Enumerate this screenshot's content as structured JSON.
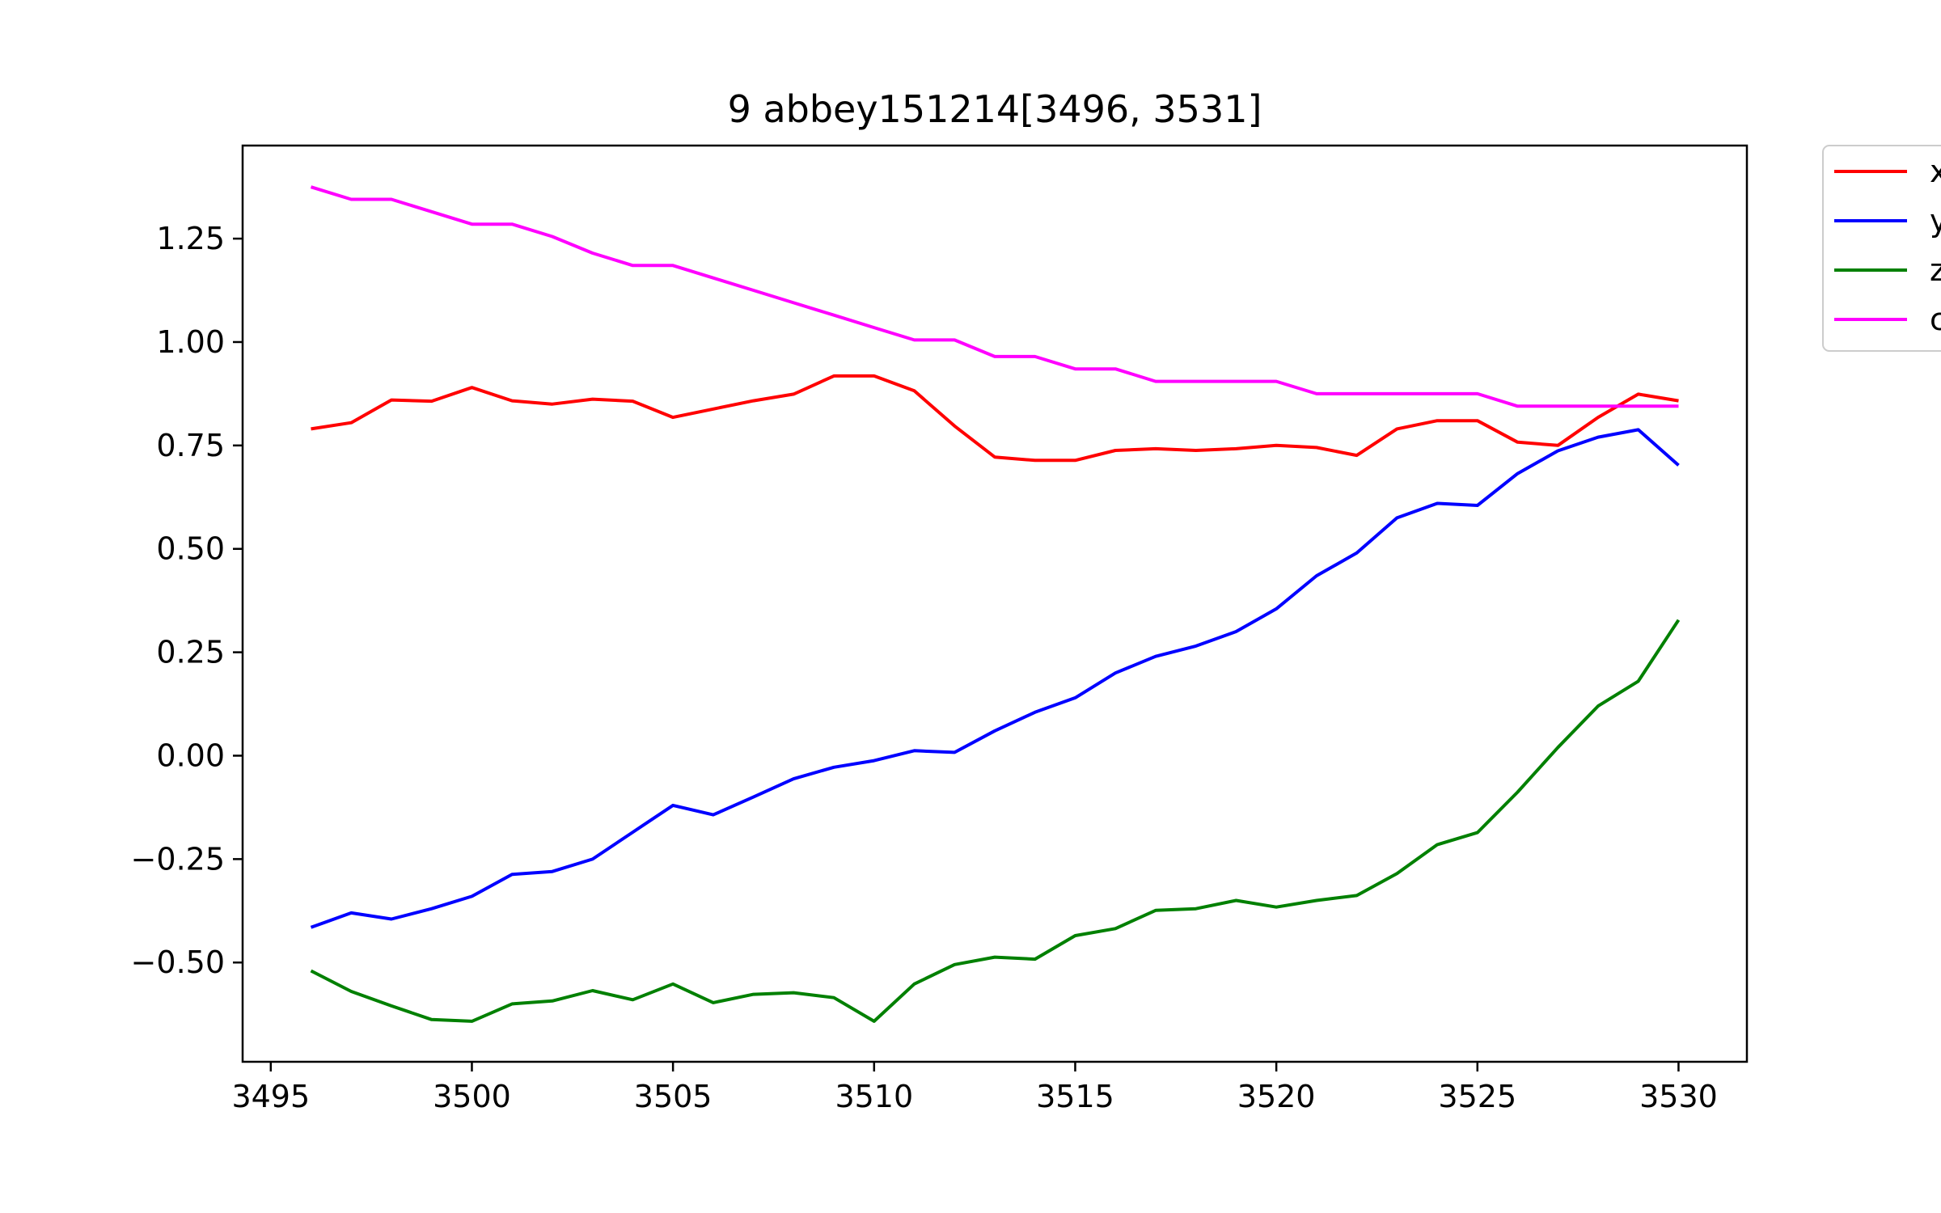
{
  "chart_data": {
    "type": "line",
    "title": "9 abbey151214[3496, 3531]",
    "xlabel": "",
    "ylabel": "",
    "xlim": [
      3494.3,
      3531.7
    ],
    "ylim": [
      -0.74,
      1.475
    ],
    "x_ticks": [
      3495,
      3500,
      3505,
      3510,
      3515,
      3520,
      3525,
      3530
    ],
    "x_tick_labels": [
      "3495",
      "3500",
      "3505",
      "3510",
      "3515",
      "3520",
      "3525",
      "3530"
    ],
    "y_ticks": [
      -0.5,
      -0.25,
      0.0,
      0.25,
      0.5,
      0.75,
      1.0,
      1.25
    ],
    "y_tick_labels": [
      "−0.50",
      "−0.25",
      "0.00",
      "0.25",
      "0.50",
      "0.75",
      "1.00",
      "1.25"
    ],
    "grid": false,
    "legend_position": "outside-top-right",
    "x": [
      3496,
      3497,
      3498,
      3499,
      3500,
      3501,
      3502,
      3503,
      3504,
      3505,
      3506,
      3507,
      3508,
      3509,
      3510,
      3511,
      3512,
      3513,
      3514,
      3515,
      3516,
      3517,
      3518,
      3519,
      3520,
      3521,
      3522,
      3523,
      3524,
      3525,
      3526,
      3527,
      3528,
      3529,
      3530
    ],
    "series": [
      {
        "name": "x",
        "color": "#ff0000",
        "values": [
          0.79,
          0.805,
          0.86,
          0.857,
          0.89,
          0.858,
          0.85,
          0.862,
          0.857,
          0.818,
          0.838,
          0.858,
          0.874,
          0.918,
          0.918,
          0.882,
          0.797,
          0.722,
          0.714,
          0.714,
          0.738,
          0.742,
          0.738,
          0.742,
          0.75,
          0.745,
          0.726,
          0.79,
          0.81,
          0.81,
          0.758,
          0.75,
          0.818,
          0.874,
          0.858
        ]
      },
      {
        "name": "y",
        "color": "#0000ff",
        "values": [
          -0.415,
          -0.38,
          -0.395,
          -0.37,
          -0.34,
          -0.287,
          -0.28,
          -0.25,
          -0.185,
          -0.12,
          -0.143,
          -0.1,
          -0.056,
          -0.028,
          -0.012,
          0.012,
          0.008,
          0.06,
          0.105,
          0.14,
          0.2,
          0.24,
          0.265,
          0.3,
          0.355,
          0.435,
          0.49,
          0.575,
          0.61,
          0.605,
          0.682,
          0.737,
          0.77,
          0.788,
          0.702
        ]
      },
      {
        "name": "z",
        "color": "#008000",
        "values": [
          -0.52,
          -0.57,
          -0.605,
          -0.638,
          -0.642,
          -0.6,
          -0.593,
          -0.568,
          -0.59,
          -0.552,
          -0.597,
          -0.577,
          -0.573,
          -0.585,
          -0.642,
          -0.552,
          -0.505,
          -0.487,
          -0.492,
          -0.435,
          -0.418,
          -0.374,
          -0.37,
          -0.35,
          -0.366,
          -0.35,
          -0.338,
          -0.285,
          -0.215,
          -0.186,
          -0.088,
          0.02,
          0.12,
          0.18,
          0.328
        ]
      },
      {
        "name": "c",
        "color": "#ff00ff",
        "values": [
          1.375,
          1.345,
          1.345,
          1.315,
          1.285,
          1.285,
          1.255,
          1.215,
          1.185,
          1.185,
          1.155,
          1.125,
          1.095,
          1.065,
          1.035,
          1.005,
          1.005,
          0.965,
          0.965,
          0.935,
          0.935,
          0.905,
          0.905,
          0.905,
          0.905,
          0.875,
          0.875,
          0.875,
          0.875,
          0.875,
          0.845,
          0.845,
          0.845,
          0.845,
          0.845
        ]
      }
    ]
  }
}
